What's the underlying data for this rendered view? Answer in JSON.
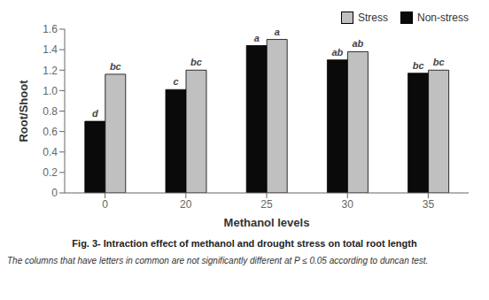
{
  "chart_data": {
    "type": "bar",
    "title": "Fig. 3- Intraction effect of methanol and drought stress on total root length",
    "subtitle": "The columns that have letters in common are not significantly different at P ≤ 0.05 according to duncan test.",
    "xlabel": "Methanol levels",
    "ylabel": "Root/Shoot",
    "categories": [
      "0",
      "20",
      "25",
      "30",
      "35"
    ],
    "series": [
      {
        "name": "Non-stress",
        "color": "#0a0a0a",
        "values": [
          0.7,
          1.01,
          1.44,
          1.3,
          1.17
        ],
        "annotations": [
          "d",
          "c",
          "a",
          "ab",
          "bc"
        ]
      },
      {
        "name": "Stress",
        "color": "#c0c0c0",
        "values": [
          1.16,
          1.2,
          1.5,
          1.38,
          1.2
        ],
        "annotations": [
          "bc",
          "bc",
          "a",
          "ab",
          "bc"
        ]
      }
    ],
    "ylim": [
      0,
      1.6
    ],
    "yticks": [
      0,
      0.2,
      0.4,
      0.6,
      {
        "value": 1.0,
        "label": "1.0"
      },
      0.8,
      1.2,
      1.4,
      1.6
    ],
    "legend": "upper right",
    "grid": false
  }
}
